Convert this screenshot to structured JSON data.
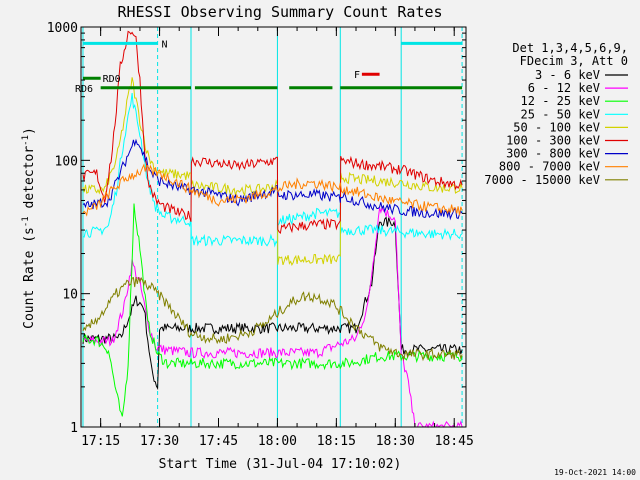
{
  "chart_data": {
    "type": "line",
    "title": "RHESSI Observing Summary Count Rates",
    "xlabel": "Start Time (31-Jul-04 17:10:02)",
    "ylabel": "Count Rate (s⁻¹ detector⁻¹)",
    "ylabel_main": "Count Rate (s",
    "ylabel_mid": " detector",
    "ylabel_end": ")",
    "ylabel_sup": "-1",
    "y_scale": "log",
    "xlim_min": [
      10,
      48
    ],
    "ylim": [
      1,
      1000
    ],
    "x_ticks": [
      {
        "t": 15,
        "label": "17:15"
      },
      {
        "t": 30,
        "label": "17:30"
      },
      {
        "t": 45,
        "label": "17:45"
      },
      {
        "t": 60,
        "label": "18:00"
      },
      {
        "t": 75,
        "label": "18:15"
      },
      {
        "t": 90,
        "label": "18:30"
      },
      {
        "t": 105,
        "label": "18:45"
      }
    ],
    "y_ticks": [
      {
        "v": 1,
        "label": "1"
      },
      {
        "v": 10,
        "label": "10"
      },
      {
        "v": 100,
        "label": "100"
      },
      {
        "v": 1000,
        "label": "1000"
      }
    ],
    "legend_header": [
      "Det 1,3,4,5,6,9,",
      "FDecim 3, Att 0"
    ],
    "legend_position": "right",
    "timestamp": "19-Oct-2021 14:00",
    "flag_labels": {
      "n": "N",
      "f": "F",
      "rd0": "RD0",
      "rd6": "RD6"
    },
    "flags": [
      {
        "label": "N",
        "color": "#00e5e5",
        "y": 0.041,
        "segments": [
          [
            10.5,
            29.5
          ],
          [
            91.5,
            107
          ]
        ]
      },
      {
        "label": "F",
        "color": "#e00000",
        "y": 0.118,
        "segments": [
          [
            81.5,
            86
          ]
        ]
      },
      {
        "label": "RD0",
        "color": "#008000",
        "y": 0.128,
        "segments": [
          [
            10.5,
            15
          ]
        ]
      },
      {
        "label": "RD6",
        "color": "#008000",
        "y": 0.152,
        "segments": [
          [
            15,
            38
          ],
          [
            39,
            60
          ],
          [
            63,
            74
          ],
          [
            76,
            107
          ]
        ]
      }
    ],
    "vlines_solid": [
      10.5,
      38,
      60,
      76,
      91.5
    ],
    "vlines_dashed": [
      29.5,
      107
    ],
    "series": [
      {
        "name": "3 - 6 keV",
        "color": "#000000",
        "points": [
          [
            10.5,
            4.6
          ],
          [
            20,
            4.6
          ],
          [
            24,
            9
          ],
          [
            26,
            8
          ],
          [
            28,
            2.6
          ],
          [
            29.5,
            2.0
          ],
          [
            30,
            5.5
          ],
          [
            38,
            5.5
          ],
          [
            50,
            5.5
          ],
          [
            60,
            5.5
          ],
          [
            70,
            5.5
          ],
          [
            76,
            5.5
          ],
          [
            80,
            5.5
          ],
          [
            84,
            12
          ],
          [
            86,
            35
          ],
          [
            88,
            34
          ],
          [
            89,
            35
          ],
          [
            90,
            33
          ],
          [
            91.5,
            3.8
          ],
          [
            107,
            3.8
          ]
        ]
      },
      {
        "name": "6 - 12 keV",
        "color": "#ff00ff",
        "points": [
          [
            10.5,
            4.4
          ],
          [
            18,
            4.4
          ],
          [
            21,
            8
          ],
          [
            23,
            17
          ],
          [
            25,
            12
          ],
          [
            27,
            6
          ],
          [
            29,
            4
          ],
          [
            31,
            3.8
          ],
          [
            38,
            3.6
          ],
          [
            50,
            3.6
          ],
          [
            60,
            3.6
          ],
          [
            70,
            3.6
          ],
          [
            76,
            4.2
          ],
          [
            80,
            4.6
          ],
          [
            83,
            8
          ],
          [
            85,
            25
          ],
          [
            86,
            45
          ],
          [
            88,
            40
          ],
          [
            90,
            37
          ],
          [
            91.5,
            3.5
          ],
          [
            93,
            2.4
          ],
          [
            95,
            1.0
          ],
          [
            107,
            1.0
          ]
        ]
      },
      {
        "name": "12 - 25 keV",
        "color": "#00ff00",
        "points": [
          [
            10.5,
            4.5
          ],
          [
            14,
            4.5
          ],
          [
            17,
            3.8
          ],
          [
            19,
            1.8
          ],
          [
            20.5,
            1.1
          ],
          [
            22,
            3
          ],
          [
            23.5,
            46
          ],
          [
            25,
            22
          ],
          [
            27,
            6
          ],
          [
            29.5,
            3.5
          ],
          [
            32,
            3.0
          ],
          [
            38,
            3.0
          ],
          [
            50,
            3.0
          ],
          [
            60,
            3.0
          ],
          [
            70,
            3.0
          ],
          [
            76,
            3.0
          ],
          [
            78,
            3.0
          ],
          [
            82,
            3.2
          ],
          [
            86,
            3.4
          ],
          [
            91.5,
            3.4
          ],
          [
            107,
            3.4
          ]
        ]
      },
      {
        "name": "25 - 50 keV",
        "color": "#00ffff",
        "points": [
          [
            10.5,
            29
          ],
          [
            14,
            29
          ],
          [
            17,
            32
          ],
          [
            19,
            60
          ],
          [
            21,
            150
          ],
          [
            23,
            300
          ],
          [
            25,
            160
          ],
          [
            27,
            70
          ],
          [
            29,
            45
          ],
          [
            31,
            38
          ],
          [
            35,
            36
          ],
          [
            38,
            35
          ],
          [
            38.1,
            25
          ],
          [
            45,
            25
          ],
          [
            50,
            25
          ],
          [
            55,
            25
          ],
          [
            60,
            25
          ],
          [
            60.1,
            35
          ],
          [
            65,
            37
          ],
          [
            70,
            40
          ],
          [
            75,
            40
          ],
          [
            76,
            40
          ],
          [
            76.1,
            30
          ],
          [
            85,
            30
          ],
          [
            91.5,
            29
          ],
          [
            100,
            28
          ],
          [
            107,
            28
          ]
        ]
      },
      {
        "name": "50 - 100 keV",
        "color": "#d2d200",
        "points": [
          [
            10.5,
            60
          ],
          [
            14,
            60
          ],
          [
            16,
            60
          ],
          [
            19,
            100
          ],
          [
            21,
            200
          ],
          [
            22,
            300
          ],
          [
            23,
            400
          ],
          [
            25,
            200
          ],
          [
            27,
            110
          ],
          [
            29,
            85
          ],
          [
            31,
            80
          ],
          [
            35,
            78
          ],
          [
            38,
            76
          ],
          [
            38.1,
            65
          ],
          [
            45,
            62
          ],
          [
            50,
            60
          ],
          [
            55,
            60
          ],
          [
            60,
            65
          ],
          [
            60.1,
            18
          ],
          [
            65,
            18
          ],
          [
            70,
            18
          ],
          [
            76,
            18
          ],
          [
            76.1,
            75
          ],
          [
            80,
            72
          ],
          [
            86,
            70
          ],
          [
            91.5,
            68
          ],
          [
            100,
            62
          ],
          [
            107,
            62
          ]
        ]
      },
      {
        "name": "100 - 300 keV",
        "color": "#e00000",
        "points": [
          [
            10.5,
            75
          ],
          [
            12,
            78
          ],
          [
            14,
            80
          ],
          [
            16,
            50
          ],
          [
            18,
            120
          ],
          [
            20,
            500
          ],
          [
            22,
            900
          ],
          [
            23,
            950
          ],
          [
            24,
            800
          ],
          [
            25,
            400
          ],
          [
            26,
            140
          ],
          [
            27,
            70
          ],
          [
            29,
            50
          ],
          [
            31,
            45
          ],
          [
            35,
            40
          ],
          [
            38,
            38
          ],
          [
            38.1,
            100
          ],
          [
            45,
            95
          ],
          [
            50,
            90
          ],
          [
            55,
            95
          ],
          [
            60,
            100
          ],
          [
            60.1,
            30
          ],
          [
            65,
            32
          ],
          [
            70,
            33
          ],
          [
            76,
            33
          ],
          [
            76.1,
            100
          ],
          [
            80,
            95
          ],
          [
            86,
            90
          ],
          [
            91.5,
            85
          ],
          [
            100,
            70
          ],
          [
            107,
            65
          ]
        ]
      },
      {
        "name": "300 - 800 keV",
        "color": "#0000c8",
        "points": [
          [
            10.5,
            45
          ],
          [
            14,
            47
          ],
          [
            17,
            50
          ],
          [
            20,
            80
          ],
          [
            22,
            110
          ],
          [
            24,
            150
          ],
          [
            26,
            110
          ],
          [
            28,
            80
          ],
          [
            30,
            70
          ],
          [
            35,
            62
          ],
          [
            38,
            60
          ],
          [
            38.1,
            60
          ],
          [
            45,
            55
          ],
          [
            50,
            50
          ],
          [
            55,
            55
          ],
          [
            60,
            60
          ],
          [
            60.1,
            55
          ],
          [
            65,
            55
          ],
          [
            70,
            55
          ],
          [
            76,
            52
          ],
          [
            76.1,
            55
          ],
          [
            80,
            50
          ],
          [
            86,
            45
          ],
          [
            91.5,
            42
          ],
          [
            100,
            40
          ],
          [
            107,
            40
          ]
        ]
      },
      {
        "name": "800 - 7000 keV",
        "color": "#ff8000",
        "points": [
          [
            10.5,
            40
          ],
          [
            14,
            45
          ],
          [
            18,
            60
          ],
          [
            22,
            75
          ],
          [
            26,
            85
          ],
          [
            30,
            80
          ],
          [
            34,
            70
          ],
          [
            38,
            60
          ],
          [
            45,
            50
          ],
          [
            52,
            52
          ],
          [
            58,
            58
          ],
          [
            63,
            65
          ],
          [
            68,
            68
          ],
          [
            72,
            66
          ],
          [
            76,
            62
          ],
          [
            80,
            58
          ],
          [
            86,
            52
          ],
          [
            91.5,
            48
          ],
          [
            100,
            44
          ],
          [
            107,
            42
          ]
        ]
      },
      {
        "name": "7000 - 15000 keV",
        "color": "#808000",
        "points": [
          [
            10.5,
            5
          ],
          [
            13,
            6
          ],
          [
            16,
            7.5
          ],
          [
            19,
            10
          ],
          [
            22,
            12
          ],
          [
            25,
            12.5
          ],
          [
            28,
            11
          ],
          [
            31,
            9
          ],
          [
            34,
            7
          ],
          [
            38,
            5
          ],
          [
            45,
            4.5
          ],
          [
            52,
            5
          ],
          [
            57,
            6
          ],
          [
            62,
            8
          ],
          [
            66,
            9.5
          ],
          [
            70,
            9.5
          ],
          [
            74,
            8.5
          ],
          [
            78,
            6.5
          ],
          [
            82,
            5
          ],
          [
            86,
            4
          ],
          [
            91.5,
            3.5
          ],
          [
            100,
            3.5
          ],
          [
            107,
            3.5
          ]
        ]
      }
    ]
  }
}
